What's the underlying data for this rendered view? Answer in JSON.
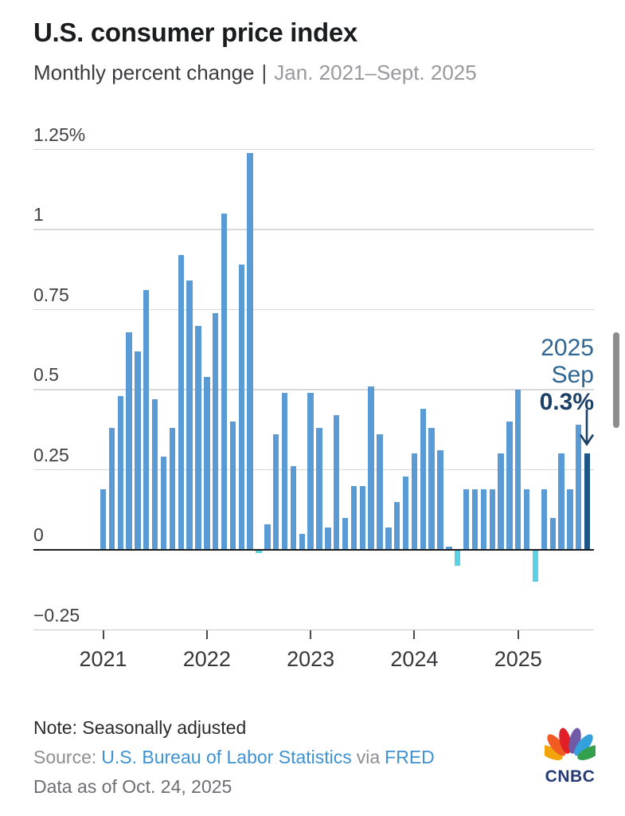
{
  "header": {
    "title": "U.S. consumer price index",
    "subtitle": "Monthly percent change",
    "subtitle_separator": "|",
    "subtitle_range": "Jan. 2021–Sept. 2025"
  },
  "chart_data": {
    "type": "bar",
    "title": "U.S. consumer price index",
    "ylabel": "Monthly percent change (%)",
    "ylim": [
      -0.25,
      1.25
    ],
    "grid": true,
    "yticks": [
      {
        "label": "1.25%",
        "value": 1.25
      },
      {
        "label": "1",
        "value": 1
      },
      {
        "label": "0.75",
        "value": 0.75
      },
      {
        "label": "0.5",
        "value": 0.5
      },
      {
        "label": "0.25",
        "value": 0.25
      },
      {
        "label": "0",
        "value": 0
      },
      {
        "label": "−0.25",
        "value": -0.25
      }
    ],
    "xticks": [
      "2021",
      "2022",
      "2023",
      "2024",
      "2025"
    ],
    "months": [
      "Jan 2021",
      "Feb 2021",
      "Mar 2021",
      "Apr 2021",
      "May 2021",
      "Jun 2021",
      "Jul 2021",
      "Aug 2021",
      "Sep 2021",
      "Oct 2021",
      "Nov 2021",
      "Dec 2021",
      "Jan 2022",
      "Feb 2022",
      "Mar 2022",
      "Apr 2022",
      "May 2022",
      "Jun 2022",
      "Jul 2022",
      "Aug 2022",
      "Sep 2022",
      "Oct 2022",
      "Nov 2022",
      "Dec 2022",
      "Jan 2023",
      "Feb 2023",
      "Mar 2023",
      "Apr 2023",
      "May 2023",
      "Jun 2023",
      "Jul 2023",
      "Aug 2023",
      "Sep 2023",
      "Oct 2023",
      "Nov 2023",
      "Dec 2023",
      "Jan 2024",
      "Feb 2024",
      "Mar 2024",
      "Apr 2024",
      "May 2024",
      "Jun 2024",
      "Jul 2024",
      "Aug 2024",
      "Sep 2024",
      "Oct 2024",
      "Nov 2024",
      "Dec 2024",
      "Jan 2025",
      "Feb 2025",
      "Mar 2025",
      "Apr 2025",
      "May 2025",
      "Jun 2025",
      "Jul 2025",
      "Aug 2025",
      "Sep 2025"
    ],
    "values": [
      0.19,
      0.38,
      0.48,
      0.68,
      0.62,
      0.81,
      0.47,
      0.29,
      0.38,
      0.92,
      0.84,
      0.7,
      0.54,
      0.74,
      1.05,
      0.4,
      0.89,
      1.24,
      -0.01,
      0.08,
      0.36,
      0.49,
      0.26,
      0.05,
      0.49,
      0.38,
      0.07,
      0.42,
      0.1,
      0.2,
      0.2,
      0.51,
      0.36,
      0.07,
      0.15,
      0.23,
      0.3,
      0.44,
      0.38,
      0.31,
      0.01,
      -0.05,
      0.19,
      0.19,
      0.19,
      0.19,
      0.3,
      0.4,
      0.5,
      0.19,
      -0.1,
      0.19,
      0.1,
      0.3,
      0.19,
      0.39,
      0.3
    ],
    "highlight_last": true,
    "colors": {
      "positive": "#5b9bd5",
      "negative": "#5ad2e4",
      "highlight": "#1e5687",
      "grid": "#d8d8d8",
      "bottom_line": "#c9c9c9",
      "axis": "#1d1d1f"
    },
    "annotation": {
      "year": "2025",
      "month": "Sep",
      "value": "0.3%"
    },
    "legend_position": "none"
  },
  "footer": {
    "note": "Note: Seasonally adjusted",
    "source_prefix": "Source:",
    "source_link": "U.S. Bureau of Labor Statistics",
    "via": "via",
    "source_link2": "FRED",
    "data_as_of": "Data as of Oct. 24, 2025",
    "logo": "CNBC"
  }
}
